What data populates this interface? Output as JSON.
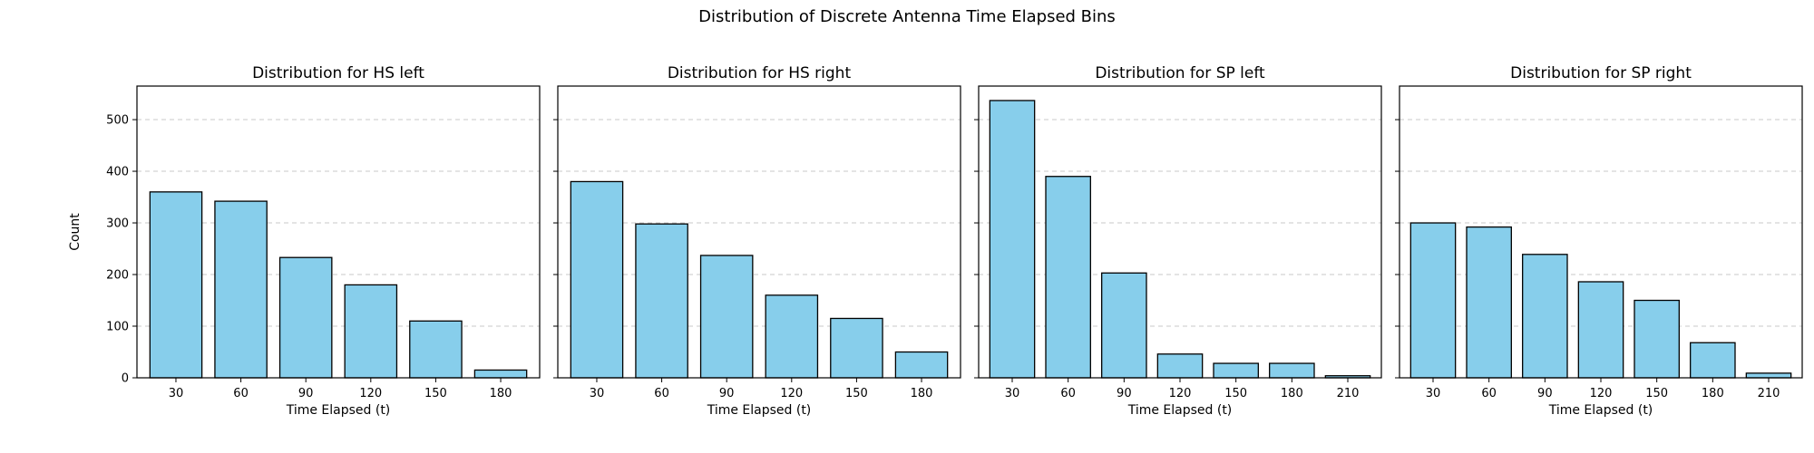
{
  "figure": {
    "suptitle": "Distribution of Discrete Antenna Time Elapsed Bins"
  },
  "chart_data": [
    {
      "type": "bar",
      "title": "Distribution for HS left",
      "xlabel": "Time Elapsed (t)",
      "ylabel": "Count",
      "categories": [
        "30",
        "60",
        "90",
        "120",
        "150",
        "180"
      ],
      "values": [
        360,
        342,
        233,
        180,
        110,
        15
      ],
      "ylim": [
        0,
        565
      ],
      "yticks": [
        0,
        100,
        200,
        300,
        400,
        500
      ],
      "grid": "y-dashed",
      "bar_color": "#87CEEB",
      "edge_color": "#000000"
    },
    {
      "type": "bar",
      "title": "Distribution for HS right",
      "xlabel": "Time Elapsed (t)",
      "ylabel": "",
      "categories": [
        "30",
        "60",
        "90",
        "120",
        "150",
        "180"
      ],
      "values": [
        380,
        298,
        237,
        160,
        115,
        50
      ],
      "ylim": [
        0,
        565
      ],
      "yticks": [
        0,
        100,
        200,
        300,
        400,
        500
      ],
      "grid": "y-dashed",
      "bar_color": "#87CEEB",
      "edge_color": "#000000"
    },
    {
      "type": "bar",
      "title": "Distribution for SP left",
      "xlabel": "Time Elapsed (t)",
      "ylabel": "",
      "categories": [
        "30",
        "60",
        "90",
        "120",
        "150",
        "180",
        "210"
      ],
      "values": [
        537,
        390,
        203,
        46,
        28,
        28,
        4
      ],
      "ylim": [
        0,
        565
      ],
      "yticks": [
        0,
        100,
        200,
        300,
        400,
        500
      ],
      "grid": "y-dashed",
      "bar_color": "#87CEEB",
      "edge_color": "#000000"
    },
    {
      "type": "bar",
      "title": "Distribution for SP right",
      "xlabel": "Time Elapsed (t)",
      "ylabel": "",
      "categories": [
        "30",
        "60",
        "90",
        "120",
        "150",
        "180",
        "210"
      ],
      "values": [
        300,
        292,
        239,
        186,
        150,
        68,
        9
      ],
      "ylim": [
        0,
        565
      ],
      "yticks": [
        0,
        100,
        200,
        300,
        400,
        500
      ],
      "grid": "y-dashed",
      "bar_color": "#87CEEB",
      "edge_color": "#000000"
    }
  ]
}
